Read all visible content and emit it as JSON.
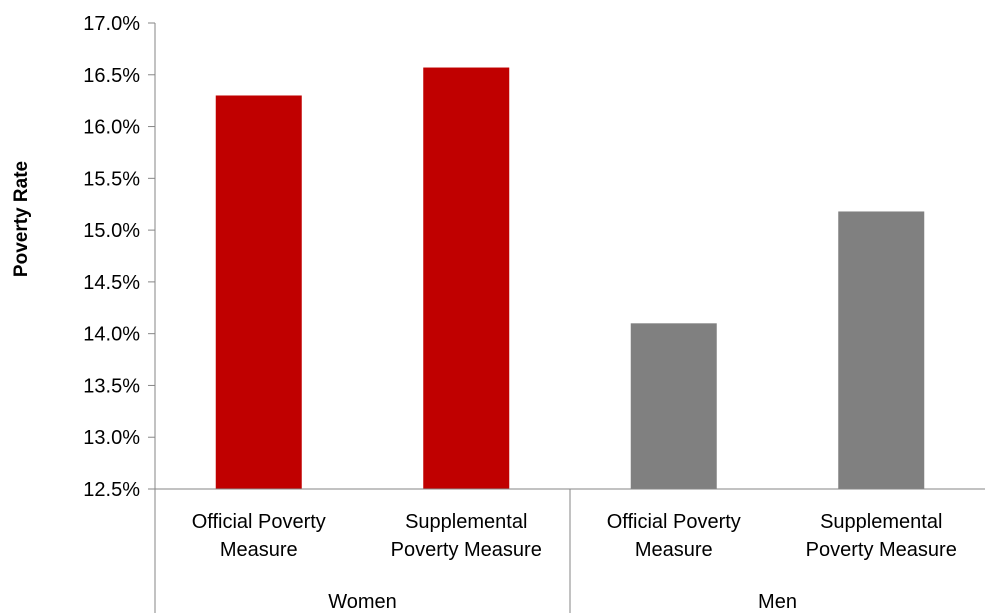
{
  "chart_data": {
    "type": "bar",
    "ylabel": "Poverty Rate",
    "ylim": [
      12.5,
      17.0
    ],
    "y_ticks": [
      12.5,
      13.0,
      13.5,
      14.0,
      14.5,
      15.0,
      15.5,
      16.0,
      16.5,
      17.0
    ],
    "y_tick_labels": [
      "12.5%",
      "13.0%",
      "13.5%",
      "14.0%",
      "14.5%",
      "15.0%",
      "15.5%",
      "16.0%",
      "16.5%",
      "17.0%"
    ],
    "grid": false,
    "legend": "none",
    "groups": [
      {
        "label": "Women",
        "color": "#c00000",
        "categories": [
          {
            "label_lines": [
              "Official Poverty",
              "Measure"
            ],
            "value": 16.3
          },
          {
            "label_lines": [
              "Supplemental",
              "Poverty Measure"
            ],
            "value": 16.57
          }
        ]
      },
      {
        "label": "Men",
        "color": "#808080",
        "categories": [
          {
            "label_lines": [
              "Official Poverty",
              "Measure"
            ],
            "value": 14.1
          },
          {
            "label_lines": [
              "Supplemental",
              "Poverty Measure"
            ],
            "value": 15.18
          }
        ]
      }
    ]
  }
}
